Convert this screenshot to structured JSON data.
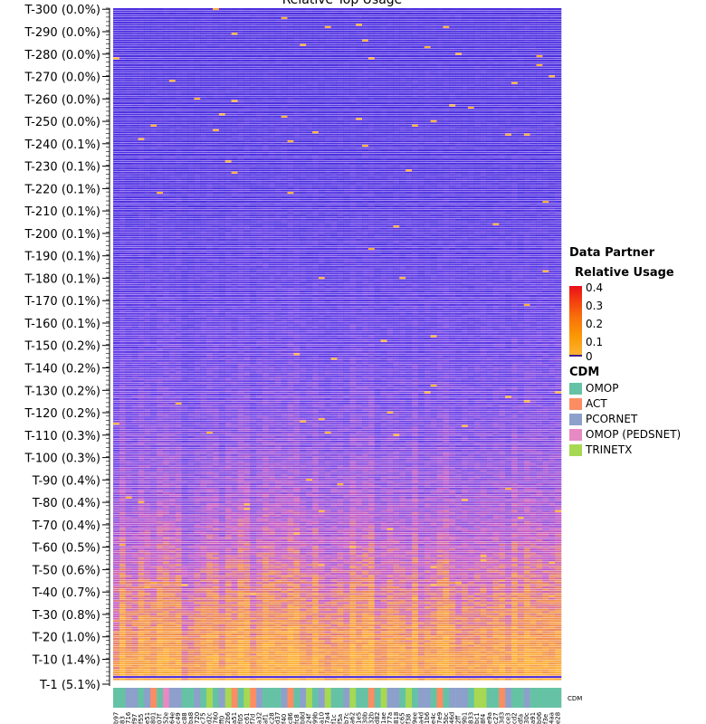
{
  "chart_data": {
    "type": "heatmap",
    "title": "Relative Top Usage",
    "y_tick_labels": [
      "T-300 (0.0%)",
      "T-290 (0.0%)",
      "T-280 (0.0%)",
      "T-270 (0.0%)",
      "T-260 (0.0%)",
      "T-250 (0.0%)",
      "T-240 (0.1%)",
      "T-230 (0.1%)",
      "T-220 (0.1%)",
      "T-210 (0.1%)",
      "T-200 (0.1%)",
      "T-190 (0.1%)",
      "T-180 (0.1%)",
      "T-170 (0.1%)",
      "T-160 (0.1%)",
      "T-150 (0.2%)",
      "T-140 (0.2%)",
      "T-130 (0.2%)",
      "T-120 (0.2%)",
      "T-110 (0.3%)",
      "T-100 (0.3%)",
      "T-90 (0.4%)",
      "T-80 (0.4%)",
      "T-70 (0.4%)",
      "T-60 (0.5%)",
      "T-50 (0.6%)",
      "T-40 (0.7%)",
      "T-30 (0.8%)",
      "T-20 (1.0%)",
      "T-10 (1.4%)",
      "T-1 (5.1%)"
    ],
    "y_tick_ranks": [
      300,
      290,
      280,
      270,
      260,
      250,
      240,
      230,
      220,
      210,
      200,
      190,
      180,
      170,
      160,
      150,
      140,
      130,
      120,
      110,
      100,
      90,
      80,
      70,
      60,
      50,
      40,
      30,
      20,
      10,
      1
    ],
    "row_count": 300,
    "column_count": 72,
    "colorbar": {
      "title": "Data Partner",
      "subtitle": "Relative Usage",
      "ticks": [
        "0.4",
        "0.3",
        "0.2",
        "0.1",
        "0"
      ],
      "range": [
        0,
        0.4
      ],
      "colors": [
        "#3a1a8a",
        "#5b3fe6",
        "#8a4fe0",
        "#c75ac8",
        "#f0893a",
        "#fdb233",
        "#e8101a"
      ]
    },
    "cdm_legend": {
      "title": "CDM",
      "items": [
        {
          "label": "OMOP",
          "color": "#66c2a5"
        },
        {
          "label": "ACT",
          "color": "#fc8d62"
        },
        {
          "label": "PCORNET",
          "color": "#8da0cb"
        },
        {
          "label": "OMOP (PEDSNET)",
          "color": "#e78ac3"
        },
        {
          "label": "TRINETX",
          "color": "#a6d854"
        }
      ]
    },
    "cdm_annotation_label": "CDM",
    "column_cdm": [
      0,
      0,
      2,
      2,
      0,
      2,
      1,
      0,
      3,
      2,
      2,
      0,
      0,
      2,
      0,
      4,
      0,
      2,
      4,
      1,
      0,
      4,
      1,
      2,
      0,
      0,
      0,
      2,
      1,
      0,
      2,
      4,
      0,
      2,
      4,
      0,
      0,
      2,
      4,
      0,
      0,
      1,
      0,
      4,
      2,
      2,
      0,
      4,
      0,
      2,
      2,
      0,
      1,
      0,
      2,
      2,
      2,
      0,
      4,
      4,
      0,
      0,
      1,
      2,
      0,
      0,
      2,
      0,
      0,
      0,
      0,
      0
    ],
    "column_labels": [
      "b97",
      "83",
      "716",
      "f97",
      "f55",
      "e51",
      "801",
      "07f",
      "52e",
      "64e",
      "c49",
      "c88",
      "ba8",
      "720",
      "c75",
      "d2c",
      "760",
      "ff0",
      "2b6",
      "a51",
      "f05",
      "c61",
      "f7d",
      "a32",
      "af1",
      "c28",
      "d37",
      "f40",
      "c86",
      "fc8",
      "b8d",
      "24f",
      "99b",
      "a10",
      "7a4",
      "f1c",
      "f5a",
      "b7c",
      "a62",
      "1e5",
      "30b",
      "32b",
      "d82",
      "1ae",
      "77a",
      "818",
      "c65",
      "f38",
      "9ee",
      "a4d",
      "1b6",
      "e4c",
      "7e9",
      "5bc",
      "46d",
      "2ff",
      "9b1",
      "833",
      "bc1",
      "8f4",
      "e9a",
      "c27",
      "3d3",
      "ce3",
      "cd2",
      "dfa",
      "30c",
      "a91",
      "b06",
      "f3e",
      "4aa",
      "e28"
    ],
    "notes": "Rank T-1 has the highest usage (5.1%); cells near the bottom are orange (high relative usage), cells near the top are blue/purple (near 0)."
  }
}
